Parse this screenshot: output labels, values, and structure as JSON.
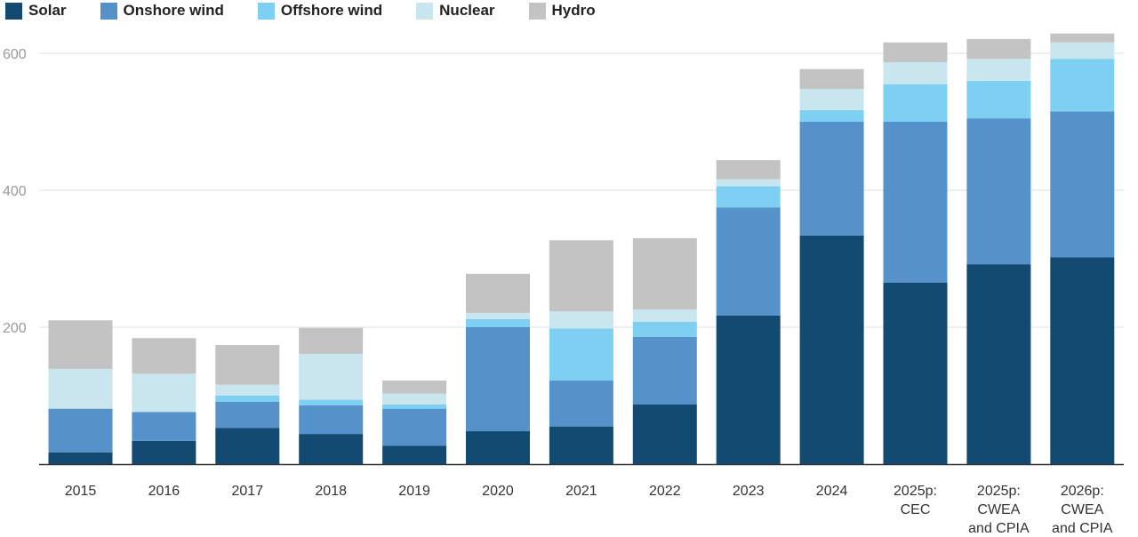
{
  "chart_data": {
    "type": "bar",
    "stacked": true,
    "title": "",
    "xlabel": "",
    "ylabel": "",
    "ylim": [
      0,
      640
    ],
    "yticks": [
      200,
      400,
      600
    ],
    "grid": true,
    "legend_position": "top-left",
    "categories": [
      [
        "2015"
      ],
      [
        "2016"
      ],
      [
        "2017"
      ],
      [
        "2018"
      ],
      [
        "2019"
      ],
      [
        "2020"
      ],
      [
        "2021"
      ],
      [
        "2022"
      ],
      [
        "2023"
      ],
      [
        "2024"
      ],
      [
        "2025p:",
        "CEC"
      ],
      [
        "2025p:",
        "CWEA",
        "and CPIA"
      ],
      [
        "2026p:",
        "CWEA",
        "and CPIA"
      ]
    ],
    "series": [
      {
        "name": "Solar",
        "color": "#124a72",
        "values": [
          17,
          34,
          53,
          44,
          27,
          48,
          55,
          87,
          217,
          334,
          265,
          292,
          302
        ]
      },
      {
        "name": "Onshore wind",
        "color": "#5592c9",
        "values": [
          64,
          42,
          38,
          42,
          54,
          152,
          67,
          99,
          158,
          166,
          235,
          213,
          213
        ]
      },
      {
        "name": "Offshore wind",
        "color": "#7dd0f2",
        "values": [
          0,
          0,
          9,
          8,
          6,
          12,
          76,
          22,
          31,
          17,
          55,
          55,
          77
        ]
      },
      {
        "name": "Nuclear",
        "color": "#c9e6ee",
        "values": [
          58,
          56,
          16,
          67,
          16,
          9,
          25,
          18,
          10,
          31,
          32,
          32,
          24
        ]
      },
      {
        "name": "Hydro",
        "color": "#c3c3c3",
        "values": [
          71,
          52,
          58,
          38,
          19,
          57,
          104,
          104,
          28,
          29,
          29,
          29,
          13
        ]
      }
    ]
  }
}
